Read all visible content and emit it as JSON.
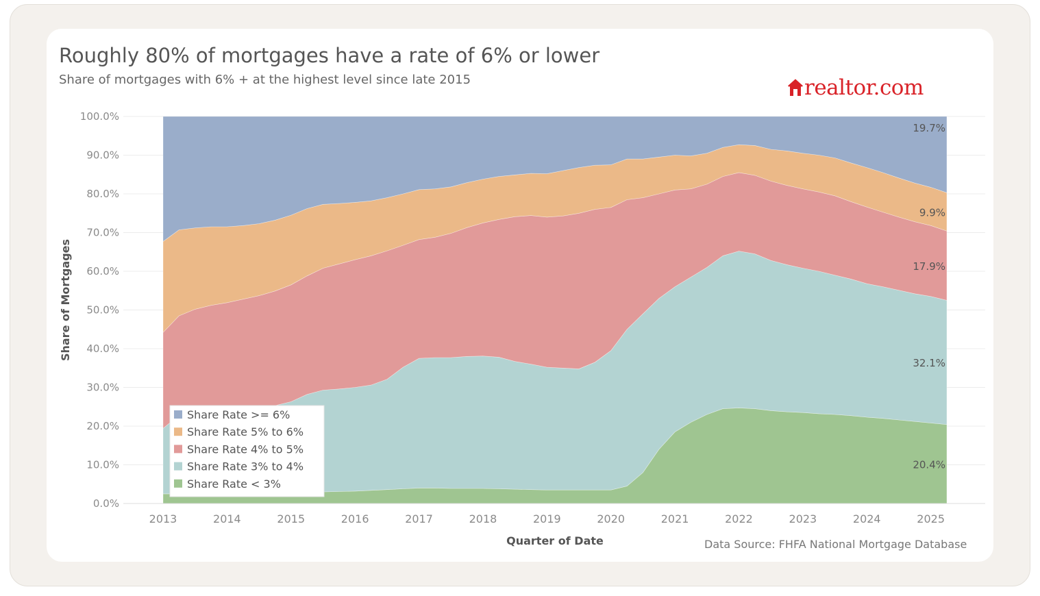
{
  "brand": {
    "name": "realtor.com",
    "icon": "house-icon",
    "color": "#d92228"
  },
  "source": "Data Source: FHFA National Mortgage Database",
  "chart_data": {
    "type": "area",
    "stacked": true,
    "title": "Roughly 80% of mortgages have a rate of 6% or lower",
    "subtitle": "Share of mortgages with 6% + at the highest level since late 2015",
    "xlabel": "Quarter of Date",
    "ylabel": "Share of Mortgages",
    "x": [
      2013.0,
      2013.25,
      2013.5,
      2013.75,
      2014.0,
      2014.25,
      2014.5,
      2014.75,
      2015.0,
      2015.25,
      2015.5,
      2015.75,
      2016.0,
      2016.25,
      2016.5,
      2016.75,
      2017.0,
      2017.25,
      2017.5,
      2017.75,
      2018.0,
      2018.25,
      2018.5,
      2018.75,
      2019.0,
      2019.25,
      2019.5,
      2019.75,
      2020.0,
      2020.25,
      2020.5,
      2020.75,
      2021.0,
      2021.25,
      2021.5,
      2021.75,
      2022.0,
      2022.25,
      2022.5,
      2022.75,
      2023.0,
      2023.25,
      2023.5,
      2023.75,
      2024.0,
      2024.25,
      2024.5,
      2024.75,
      2025.0,
      2025.25
    ],
    "x_ticks": [
      "2013",
      "2014",
      "2015",
      "2016",
      "2017",
      "2018",
      "2019",
      "2020",
      "2021",
      "2022",
      "2023",
      "2024",
      "2025"
    ],
    "y_ticks": [
      "0.0%",
      "10.0%",
      "20.0%",
      "30.0%",
      "40.0%",
      "50.0%",
      "60.0%",
      "70.0%",
      "80.0%",
      "90.0%",
      "100.0%"
    ],
    "ylim": [
      0,
      100
    ],
    "xlim": [
      2013,
      2025.25
    ],
    "grid": true,
    "legend_position": "bottom-left",
    "series": [
      {
        "name": "Share Rate < 3%",
        "color": "#9fc591",
        "values": [
          2.5,
          2.5,
          2.5,
          2.5,
          2.6,
          2.6,
          2.7,
          2.7,
          2.8,
          2.9,
          3.0,
          3.1,
          3.2,
          3.4,
          3.6,
          3.8,
          4.0,
          4.0,
          3.9,
          3.9,
          3.9,
          3.8,
          3.7,
          3.6,
          3.5,
          3.5,
          3.5,
          3.5,
          3.5,
          4.5,
          8.0,
          14.0,
          18.5,
          21.0,
          23.0,
          24.5,
          24.7,
          24.5,
          24.0,
          23.7,
          23.5,
          23.2,
          23.0,
          22.7,
          22.3,
          22.0,
          21.6,
          21.2,
          20.8,
          20.4
        ]
      },
      {
        "name": "Share Rate 3% to 4%",
        "color": "#b3d3d2",
        "values": [
          16.9,
          20.3,
          21.5,
          21.9,
          21.6,
          21.8,
          22.0,
          22.6,
          23.5,
          25.3,
          26.3,
          26.5,
          26.8,
          27.2,
          28.5,
          31.4,
          33.5,
          33.7,
          33.8,
          34.1,
          34.2,
          34.0,
          33.0,
          32.4,
          31.7,
          31.5,
          31.3,
          33.0,
          36.0,
          40.5,
          41.0,
          39.0,
          37.5,
          37.5,
          38.0,
          39.5,
          40.5,
          40.0,
          38.8,
          38.0,
          37.3,
          36.8,
          36.0,
          35.3,
          34.5,
          34.0,
          33.5,
          33.0,
          32.7,
          32.1
        ]
      },
      {
        "name": "Share Rate 4% to 5%",
        "color": "#e19a99",
        "values": [
          24.8,
          25.7,
          26.2,
          26.8,
          27.7,
          28.4,
          29.0,
          29.6,
          30.2,
          30.6,
          31.5,
          32.3,
          33.0,
          33.4,
          33.2,
          31.5,
          30.7,
          31.1,
          32.1,
          33.3,
          34.4,
          35.6,
          37.4,
          38.4,
          38.8,
          39.3,
          40.2,
          39.5,
          37.0,
          33.5,
          30.0,
          27.0,
          25.0,
          22.8,
          21.5,
          20.5,
          20.3,
          20.3,
          20.5,
          20.5,
          20.5,
          20.5,
          20.5,
          20.0,
          19.8,
          19.3,
          18.9,
          18.6,
          18.3,
          17.9
        ]
      },
      {
        "name": "Share Rate 5% to 6%",
        "color": "#ebb988",
        "values": [
          23.5,
          22.2,
          21.0,
          20.3,
          19.6,
          19.0,
          18.6,
          18.3,
          18.0,
          17.4,
          16.5,
          15.6,
          14.8,
          14.2,
          13.7,
          13.3,
          12.9,
          12.5,
          12.0,
          11.6,
          11.3,
          11.1,
          10.8,
          10.9,
          11.2,
          11.7,
          11.8,
          11.4,
          11.0,
          10.5,
          10.0,
          9.5,
          9.0,
          8.5,
          8.0,
          7.5,
          7.2,
          7.7,
          8.2,
          8.9,
          9.2,
          9.5,
          9.8,
          10.0,
          10.2,
          10.2,
          10.1,
          10.0,
          9.9,
          9.9
        ]
      },
      {
        "name": "Share Rate >= 6%",
        "color": "#9aadca",
        "values": [
          32.3,
          29.3,
          28.8,
          28.5,
          28.5,
          28.2,
          27.7,
          26.8,
          25.5,
          23.8,
          22.7,
          22.5,
          22.2,
          21.8,
          21.0,
          20.0,
          18.9,
          18.7,
          18.2,
          17.1,
          16.2,
          15.5,
          15.1,
          14.7,
          14.8,
          14.0,
          13.2,
          12.6,
          12.5,
          11.0,
          11.0,
          10.5,
          10.0,
          10.2,
          9.5,
          8.0,
          7.3,
          7.5,
          8.5,
          8.9,
          9.5,
          10.0,
          10.7,
          12.0,
          13.2,
          14.5,
          15.9,
          17.2,
          18.3,
          19.7
        ]
      }
    ],
    "end_labels": [
      "20.4%",
      "32.1%",
      "17.9%",
      "9.9%",
      "19.7%"
    ]
  }
}
